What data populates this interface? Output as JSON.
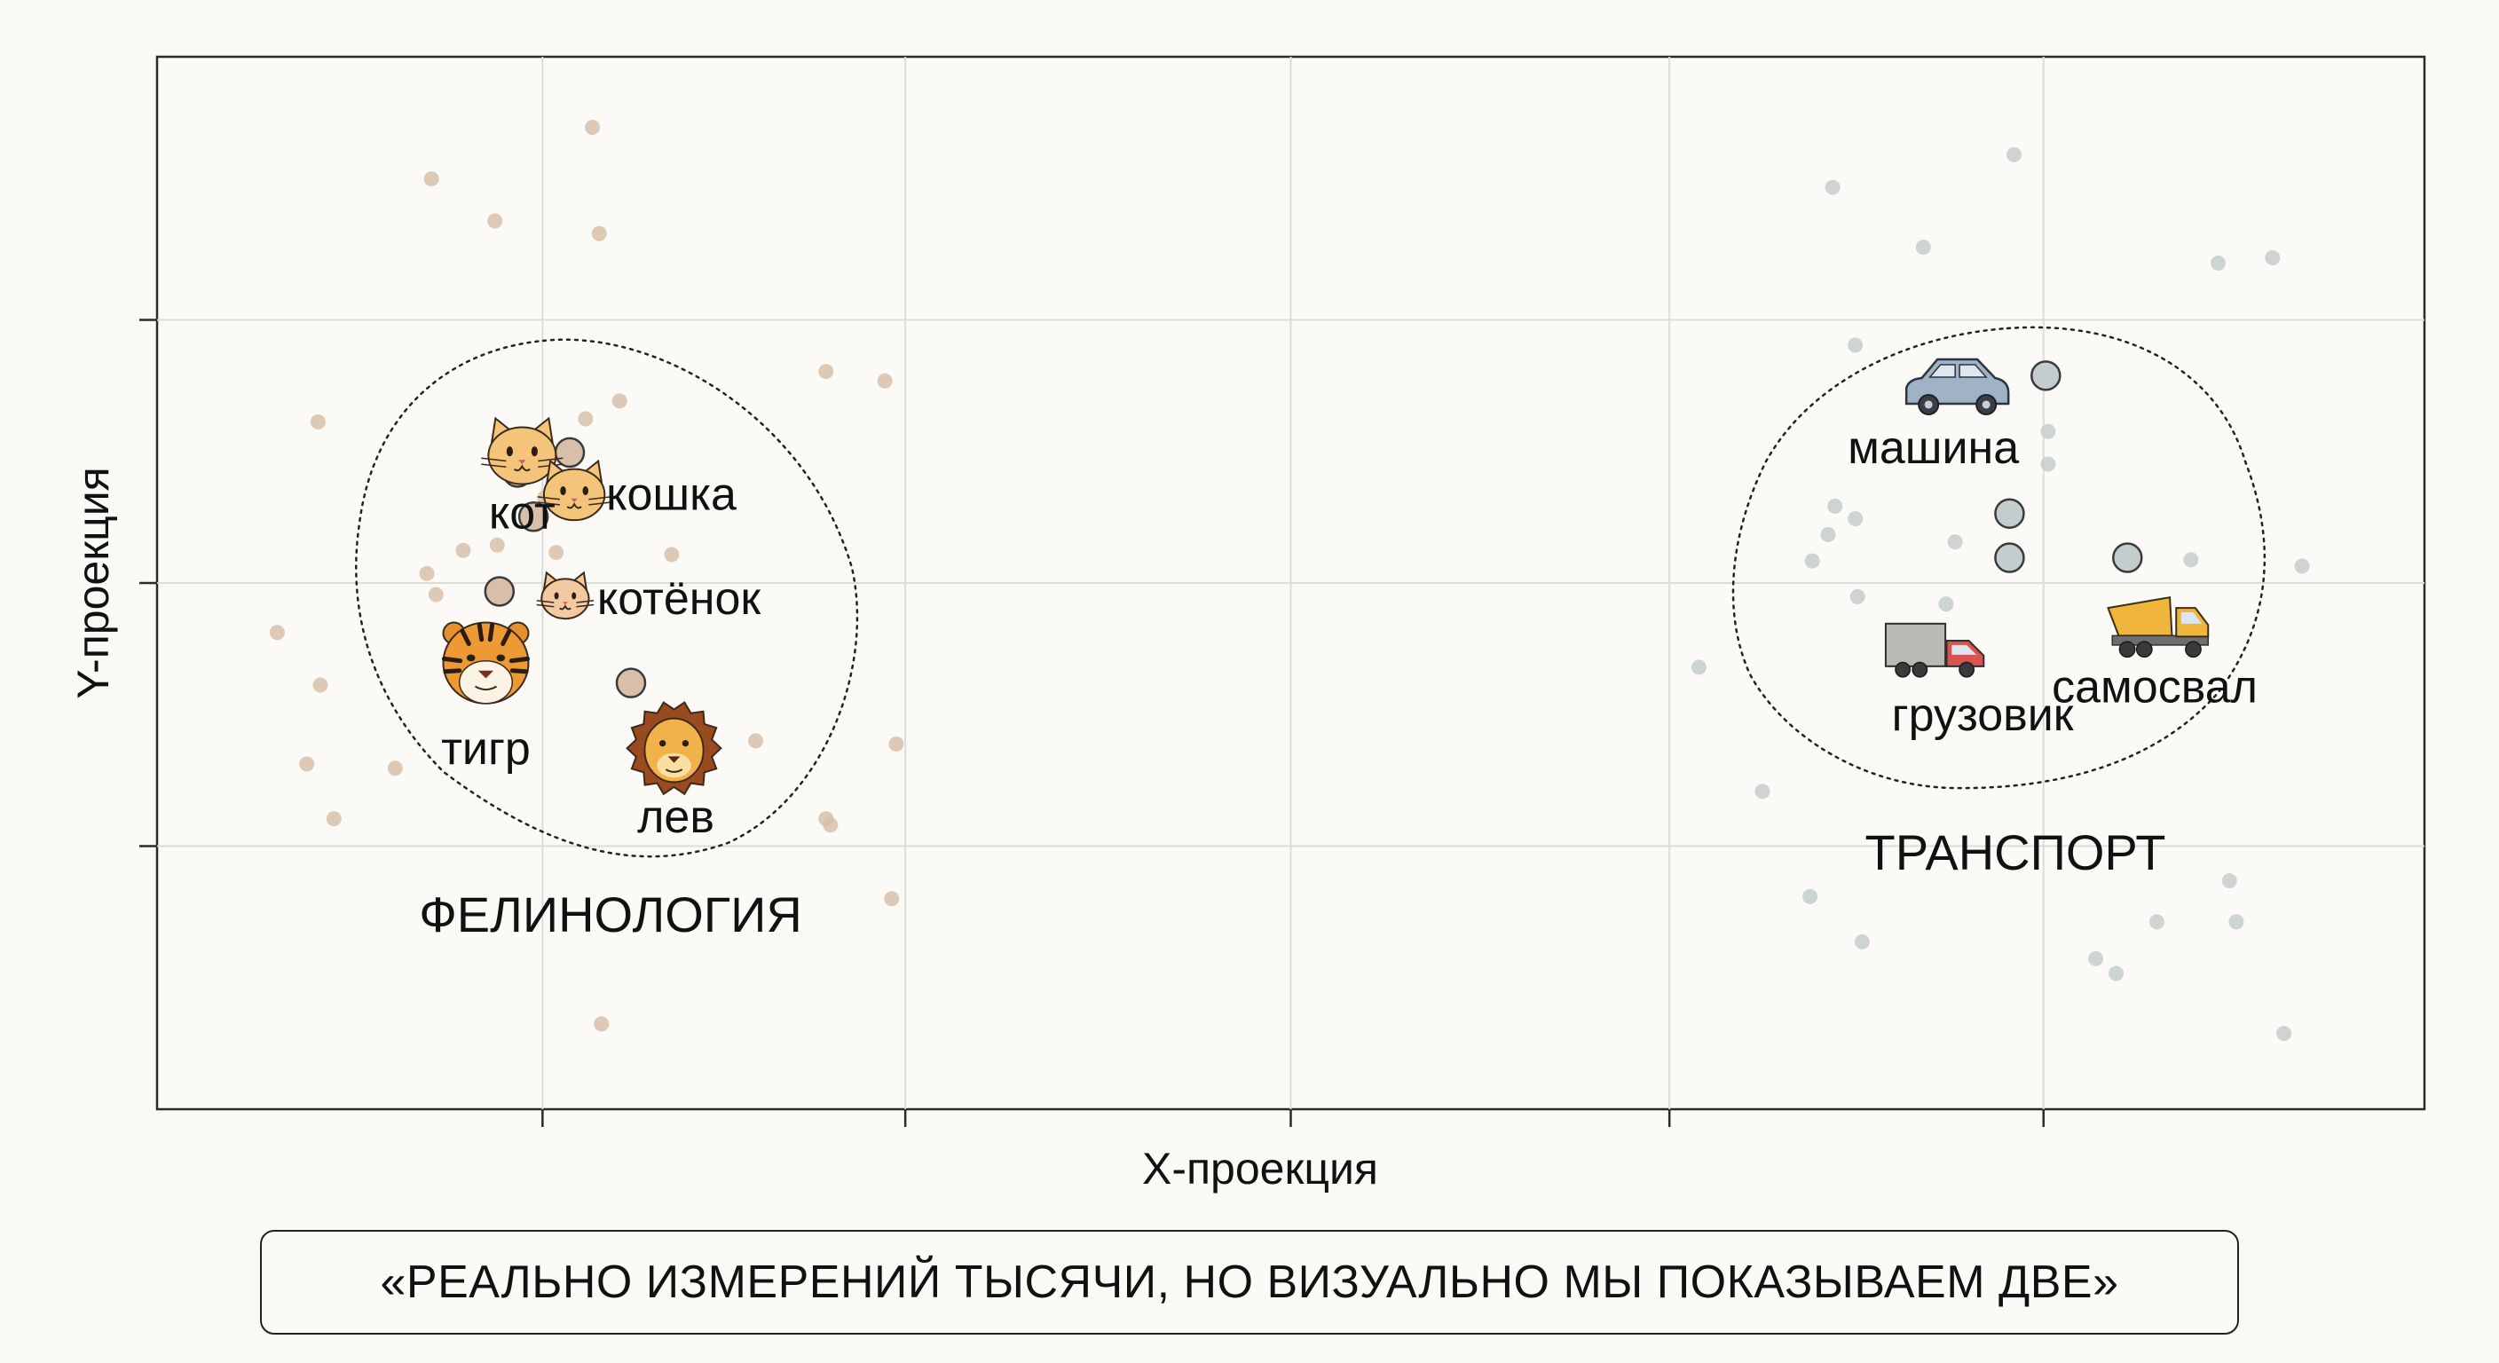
{
  "chart_data": {
    "type": "scatter",
    "title": "",
    "xlabel": "X-проекция",
    "ylabel": "Y-проекция",
    "xlim": [
      0,
      100
    ],
    "ylim": [
      0,
      100
    ],
    "grid": true,
    "x_ticks": [
      17,
      33,
      50,
      66.7,
      83.2
    ],
    "y_ticks": [
      25,
      50,
      75
    ],
    "clusters": [
      {
        "name": "ФЕЛИНОЛОГИЯ",
        "color": "#d7bfa9",
        "words": [
          {
            "label": "кот",
            "icon": "cat-face-icon",
            "x": 16.1,
            "y": 62.1
          },
          {
            "label": "кошка",
            "icon": "cat-face-icon",
            "x": 18.4,
            "y": 58.4
          },
          {
            "label": "котёнок",
            "icon": "kitten-face-icon",
            "x": 18.0,
            "y": 48.5
          },
          {
            "label": "тигр",
            "icon": "tiger-face-icon",
            "x": 14.5,
            "y": 42.4
          },
          {
            "label": "лев",
            "icon": "lion-face-icon",
            "x": 22.8,
            "y": 34.3
          }
        ],
        "key_points": [
          {
            "x": 15.9,
            "y": 60.5
          },
          {
            "x": 18.2,
            "y": 62.4
          },
          {
            "x": 16.6,
            "y": 56.3
          },
          {
            "x": 15.1,
            "y": 49.2
          },
          {
            "x": 20.9,
            "y": 40.5
          }
        ],
        "background_points": [
          {
            "x": 19.2,
            "y": 93.3
          },
          {
            "x": 12.1,
            "y": 88.4
          },
          {
            "x": 14.9,
            "y": 84.4
          },
          {
            "x": 19.5,
            "y": 83.2
          },
          {
            "x": 17.1,
            "y": 58.1
          },
          {
            "x": 18.9,
            "y": 65.6
          },
          {
            "x": 20.4,
            "y": 67.3
          },
          {
            "x": 7.1,
            "y": 65.3
          },
          {
            "x": 15.0,
            "y": 53.6
          },
          {
            "x": 17.6,
            "y": 52.9
          },
          {
            "x": 22.7,
            "y": 52.7
          },
          {
            "x": 11.9,
            "y": 50.9
          },
          {
            "x": 13.5,
            "y": 53.1
          },
          {
            "x": 12.3,
            "y": 48.9
          },
          {
            "x": 5.3,
            "y": 45.3
          },
          {
            "x": 7.2,
            "y": 40.3
          },
          {
            "x": 6.6,
            "y": 32.8
          },
          {
            "x": 10.5,
            "y": 32.4
          },
          {
            "x": 7.8,
            "y": 27.6
          },
          {
            "x": 29.5,
            "y": 70.1
          },
          {
            "x": 32.1,
            "y": 69.2
          },
          {
            "x": 26.4,
            "y": 35.0
          },
          {
            "x": 29.5,
            "y": 27.6
          },
          {
            "x": 29.7,
            "y": 27.0
          },
          {
            "x": 32.6,
            "y": 34.7
          },
          {
            "x": 32.4,
            "y": 20.0
          },
          {
            "x": 19.6,
            "y": 8.1
          }
        ]
      },
      {
        "name": "ТРАНСПОРТ",
        "color": "#c4cdcd",
        "words": [
          {
            "label": "машина",
            "icon": "car-icon",
            "x": 79.4,
            "y": 68.3
          },
          {
            "label": "грузовик",
            "icon": "truck-icon",
            "x": 78.4,
            "y": 43.1
          },
          {
            "label": "самосвал",
            "icon": "dump-truck-icon",
            "x": 88.3,
            "y": 45.4
          }
        ],
        "key_points": [
          {
            "x": 83.3,
            "y": 69.7
          },
          {
            "x": 81.7,
            "y": 56.6
          },
          {
            "x": 81.7,
            "y": 52.4
          },
          {
            "x": 86.9,
            "y": 52.4
          }
        ],
        "background_points": [
          {
            "x": 73.9,
            "y": 87.6
          },
          {
            "x": 81.9,
            "y": 90.7
          },
          {
            "x": 77.9,
            "y": 81.9
          },
          {
            "x": 90.9,
            "y": 80.4
          },
          {
            "x": 93.3,
            "y": 80.9
          },
          {
            "x": 74.9,
            "y": 72.6
          },
          {
            "x": 83.4,
            "y": 64.4
          },
          {
            "x": 83.4,
            "y": 61.3
          },
          {
            "x": 74.0,
            "y": 57.3
          },
          {
            "x": 74.9,
            "y": 56.1
          },
          {
            "x": 73.7,
            "y": 54.6
          },
          {
            "x": 73.0,
            "y": 52.1
          },
          {
            "x": 79.3,
            "y": 53.9
          },
          {
            "x": 75.0,
            "y": 48.7
          },
          {
            "x": 78.9,
            "y": 48.0
          },
          {
            "x": 89.7,
            "y": 52.2
          },
          {
            "x": 94.6,
            "y": 51.6
          },
          {
            "x": 68.0,
            "y": 42.0
          },
          {
            "x": 70.8,
            "y": 30.2
          },
          {
            "x": 72.9,
            "y": 20.2
          },
          {
            "x": 75.2,
            "y": 15.9
          },
          {
            "x": 91.4,
            "y": 21.7
          },
          {
            "x": 88.2,
            "y": 17.8
          },
          {
            "x": 85.5,
            "y": 14.3
          },
          {
            "x": 86.4,
            "y": 12.9
          },
          {
            "x": 91.7,
            "y": 17.8
          },
          {
            "x": 93.8,
            "y": 7.2
          }
        ]
      }
    ]
  },
  "caption": "«РЕАЛЬНО ИЗМЕРЕНИЙ ТЫСЯЧИ, НО ВИЗУАЛЬНО МЫ ПОКАЗЫВАЕМ ДВЕ»"
}
